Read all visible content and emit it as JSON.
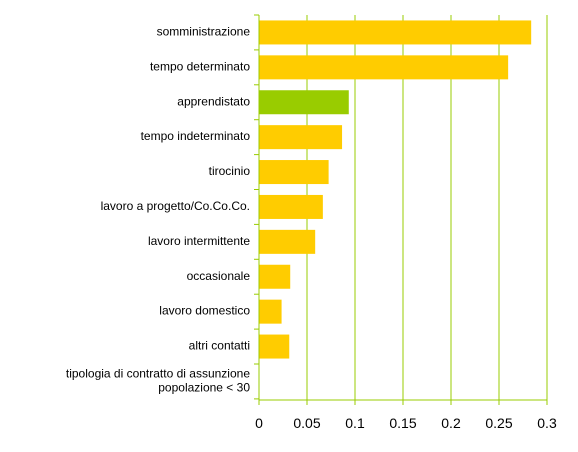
{
  "chart_data": {
    "type": "bar",
    "orientation": "horizontal",
    "categories": [
      "somministrazione",
      "tempo determinato",
      "apprendistato",
      "tempo indeterminato",
      "tirocinio",
      "lavoro a progetto/Co.Co.Co.",
      "lavoro intermittente",
      "occasionale",
      "lavoro domestico",
      "altri contatti",
      "tipologia di contratto di assunzione\npopolazione < 30"
    ],
    "values": [
      0.283,
      0.259,
      0.093,
      0.086,
      0.072,
      0.066,
      0.058,
      0.032,
      0.023,
      0.031,
      null
    ],
    "highlight_category": "apprendistato",
    "xlim": [
      0,
      0.3
    ],
    "xticks": [
      "0",
      "0.05",
      "0.1",
      "0.15",
      "0.2",
      "0.25",
      "0.3"
    ],
    "xtick_values": [
      0,
      0.05,
      0.1,
      0.15,
      0.2,
      0.25,
      0.3
    ],
    "grid": "vertical",
    "legend": "none",
    "title": "",
    "xlabel": "",
    "ylabel": ""
  },
  "colors": {
    "bar": "#ffcc00",
    "highlight": "#99cc00",
    "grid": "#99cc00",
    "axis": "#99cc00",
    "text": "#000000"
  }
}
